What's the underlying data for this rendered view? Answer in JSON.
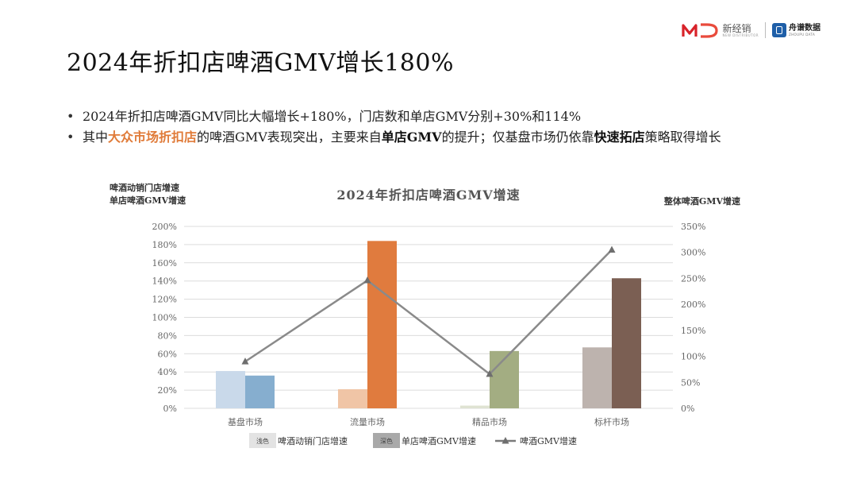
{
  "header": {
    "logo_left_text": "新经销",
    "logo_left_sub": "NEW DISTRIBUTOR",
    "logo_right_text": "舟谱数据",
    "logo_right_sub": "ZHOUPU DATA"
  },
  "page_title": "2024年折扣店啤酒GMV增长180%",
  "bullets": [
    {
      "segments": [
        {
          "text": "2024年折扣店啤酒GMV同比大幅增长+180%，门店数和单店GMV分别+30%和114%",
          "style": "normal"
        }
      ]
    },
    {
      "segments": [
        {
          "text": "其中",
          "style": "normal"
        },
        {
          "text": "大众市场折扣店",
          "style": "orange"
        },
        {
          "text": "的啤酒GMV表现突出，主要来自",
          "style": "normal"
        },
        {
          "text": "单店GMV",
          "style": "bold"
        },
        {
          "text": "的提升；仅基盘市场仍依靠",
          "style": "normal"
        },
        {
          "text": "快速拓店",
          "style": "bold"
        },
        {
          "text": "策略取得增长",
          "style": "normal"
        }
      ]
    }
  ],
  "chart_data": {
    "type": "bar",
    "title": "2024年折扣店啤酒GMV增速",
    "left_axis_note": [
      "啤酒动销门店增速",
      "单店啤酒GMV增速"
    ],
    "right_axis_note": "整体啤酒GMV增速",
    "categories": [
      "基盘市场",
      "流量市场",
      "精品市场",
      "标杆市场"
    ],
    "left_axis": {
      "min": 0,
      "max": 200,
      "step": 20,
      "unit": "%",
      "ticks": [
        "0%",
        "20%",
        "40%",
        "60%",
        "80%",
        "100%",
        "120%",
        "140%",
        "160%",
        "180%",
        "200%"
      ]
    },
    "right_axis": {
      "min": 0,
      "max": 350,
      "step": 50,
      "unit": "%",
      "ticks": [
        "0%",
        "50%",
        "100%",
        "150%",
        "200%",
        "250%",
        "300%",
        "350%"
      ]
    },
    "series": [
      {
        "name": "啤酒动销门店增速",
        "kind": "bar",
        "axis": "left",
        "values": [
          41,
          21,
          3,
          67
        ],
        "colors": [
          "#c9d9ea",
          "#f0c5a6",
          "#dfe3d2",
          "#bdb3ae"
        ]
      },
      {
        "name": "单店啤酒GMV增速",
        "kind": "bar",
        "axis": "left",
        "values": [
          36,
          184,
          63,
          143
        ],
        "colors": [
          "#86aecf",
          "#e07b3e",
          "#a3ad82",
          "#7b5f53"
        ]
      },
      {
        "name": "啤酒GMV增速",
        "kind": "line",
        "axis": "right",
        "values": [
          90,
          246,
          66,
          305
        ],
        "color": "#8a8a8a"
      }
    ],
    "legend": {
      "placement": "bottom",
      "items": [
        {
          "swatch_label": "浅色",
          "text": "啤酒动销门店增速",
          "swatch_color": "#e3e3e3"
        },
        {
          "swatch_label": "深色",
          "text": "单店啤酒GMV增速",
          "swatch_color": "#a9a9a9"
        },
        {
          "text": "啤酒GMV增速",
          "line_color": "#7a7a7a"
        }
      ]
    },
    "grid": true
  }
}
